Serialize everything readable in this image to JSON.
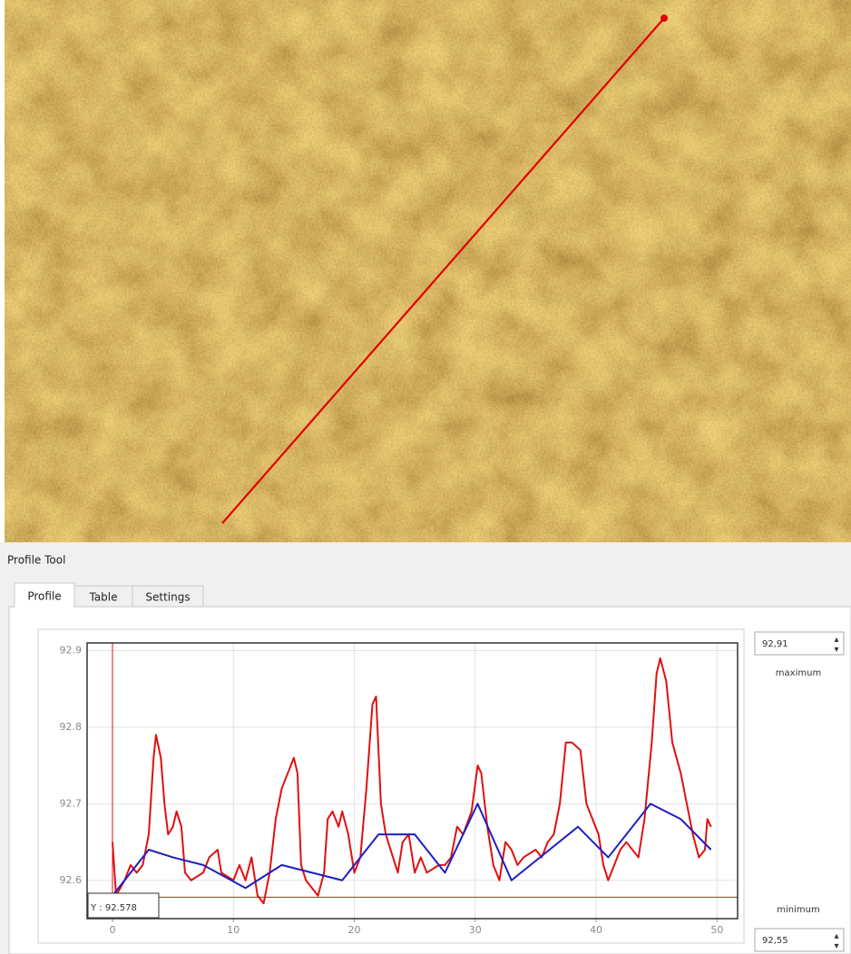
{
  "window": {
    "title": "Profile Tool",
    "tabs": [
      "Profile",
      "Table",
      "Settings"
    ],
    "maximum": {
      "value": "92,91",
      "label": "maximum"
    },
    "minimum": {
      "value": "92,55",
      "label": "minimum"
    }
  },
  "chart_data": {
    "type": "line",
    "xlim": [
      -2.1,
      51.7
    ],
    "ylim": [
      92.55,
      92.91
    ],
    "xticks": [
      0,
      10,
      20,
      30,
      40,
      50
    ],
    "yticks": [
      92.6,
      92.7,
      92.8,
      92.9
    ],
    "grid": true,
    "crosshair": {
      "x": 0,
      "y": 92.578,
      "label": "Y : 92.578"
    },
    "series": [
      {
        "color": "#e01010",
        "x": [
          0,
          0.3,
          1,
          1.5,
          2,
          2.5,
          3,
          3.4,
          3.6,
          4,
          4.3,
          4.6,
          5,
          5.3,
          5.7,
          6,
          6.5,
          7.5,
          8,
          8.7,
          9,
          10,
          10.5,
          11,
          11.5,
          12,
          12.5,
          13,
          13.5,
          14,
          14.5,
          15,
          15.3,
          15.6,
          16,
          16.5,
          17,
          17.5,
          17.8,
          18.2,
          18.7,
          19,
          19.5,
          20,
          20.5,
          21,
          21.5,
          21.8,
          22.2,
          22.6,
          23.2,
          23.6,
          24,
          24.5,
          25,
          25.5,
          26,
          27,
          27.5,
          28,
          28.5,
          29,
          29.7,
          30.2,
          30.5,
          31,
          31.5,
          32,
          32.5,
          33,
          33.5,
          34,
          35,
          35.5,
          36,
          36.5,
          37,
          37.5,
          38,
          38.7,
          39.2,
          39.7,
          40.2,
          40.6,
          41,
          41.5,
          42,
          42.5,
          43,
          43.5,
          44,
          44.6,
          45,
          45.3,
          45.8,
          46.3,
          47,
          47.5,
          48,
          48.5,
          49,
          49.2,
          49.5
        ],
        "values": [
          92.65,
          92.58,
          92.6,
          92.62,
          92.61,
          92.62,
          92.66,
          92.76,
          92.79,
          92.76,
          92.7,
          92.66,
          92.67,
          92.69,
          92.67,
          92.61,
          92.6,
          92.61,
          92.63,
          92.64,
          92.61,
          92.6,
          92.62,
          92.6,
          92.63,
          92.58,
          92.57,
          92.61,
          92.68,
          92.72,
          92.74,
          92.76,
          92.74,
          92.62,
          92.6,
          92.59,
          92.58,
          92.61,
          92.68,
          92.69,
          92.67,
          92.69,
          92.66,
          92.61,
          92.63,
          92.72,
          92.83,
          92.84,
          92.7,
          92.66,
          92.63,
          92.61,
          92.65,
          92.66,
          92.61,
          92.63,
          92.61,
          92.62,
          92.62,
          92.63,
          92.67,
          92.66,
          92.69,
          92.75,
          92.74,
          92.67,
          92.62,
          92.6,
          92.65,
          92.64,
          92.62,
          92.63,
          92.64,
          92.63,
          92.65,
          92.66,
          92.7,
          92.78,
          92.78,
          92.77,
          92.7,
          92.68,
          92.66,
          92.62,
          92.6,
          92.62,
          92.64,
          92.65,
          92.64,
          92.63,
          92.68,
          92.78,
          92.87,
          92.89,
          92.86,
          92.78,
          92.74,
          92.7,
          92.66,
          92.63,
          92.64,
          92.68,
          92.67
        ]
      },
      {
        "color": "#1f1fc0",
        "x": [
          0,
          3,
          5,
          7.5,
          11,
          14,
          19,
          22,
          25,
          27.5,
          30.2,
          33,
          38.5,
          41,
          44.5,
          47,
          49.5
        ],
        "values": [
          92.58,
          92.64,
          92.63,
          92.62,
          92.59,
          92.62,
          92.6,
          92.66,
          92.66,
          92.61,
          92.7,
          92.6,
          92.67,
          92.63,
          92.7,
          92.68,
          92.64
        ]
      }
    ]
  }
}
